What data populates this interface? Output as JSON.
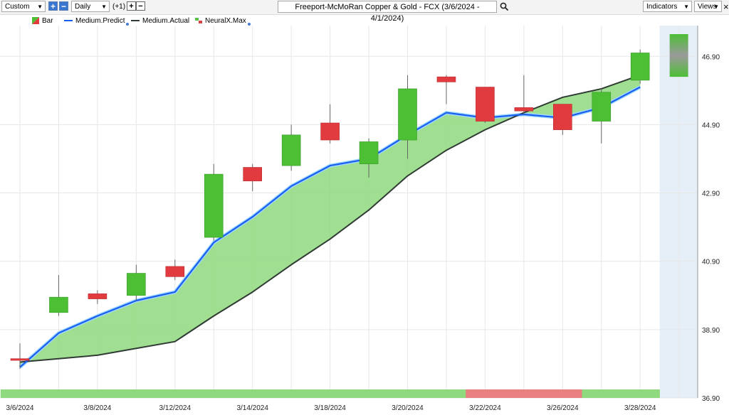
{
  "toolbar": {
    "range_select": "Custom",
    "interval_select": "Daily",
    "step_label": "(+1)",
    "title": "Freeport-McMoRan Copper & Gold - FCX (3/6/2024 - 4/1/2024)",
    "indicators_label": "Indicators",
    "views_label": "Views",
    "close_glyph": "×"
  },
  "legend": {
    "bar": "Bar",
    "predict": "Medium.Predict",
    "actual": "Medium.Actual",
    "neural": "NeuralX.Max"
  },
  "colors": {
    "up": "#4cbf35",
    "down": "#e13b3f",
    "predict": "#1a5ef0",
    "actual": "#2f3b33",
    "band": "#8fd97e",
    "forecast_bg": "#e6eef8",
    "neural_green": "#5cc04a",
    "neural_red": "#d4433f"
  },
  "chart_data": {
    "type": "candlestick",
    "title": "Freeport-McMoRan Copper & Gold - FCX (3/6/2024 - 4/1/2024)",
    "y_ticks": [
      "36.90",
      "38.90",
      "40.90",
      "42.90",
      "44.90",
      "46.90"
    ],
    "ylim": [
      36.9,
      47.8
    ],
    "x_tick_labels": [
      "3/6/2024",
      "3/8/2024",
      "3/12/2024",
      "3/14/2024",
      "3/18/2024",
      "3/20/2024",
      "3/22/2024",
      "3/26/2024",
      "3/28/2024"
    ],
    "x_tick_slots": [
      0,
      2,
      4,
      6,
      8,
      10,
      12,
      14,
      16
    ],
    "grid": true,
    "legend_position": "top-left",
    "candles": [
      {
        "slot": 0,
        "open": 38.05,
        "high": 38.5,
        "low": 37.75,
        "close": 38.0
      },
      {
        "slot": 1,
        "open": 39.4,
        "high": 40.5,
        "low": 39.3,
        "close": 39.85
      },
      {
        "slot": 2,
        "open": 39.95,
        "high": 40.05,
        "low": 39.65,
        "close": 39.8
      },
      {
        "slot": 3,
        "open": 39.9,
        "high": 40.8,
        "low": 39.75,
        "close": 40.55
      },
      {
        "slot": 4,
        "open": 40.75,
        "high": 40.95,
        "low": 40.35,
        "close": 40.45
      },
      {
        "slot": 5,
        "open": 41.6,
        "high": 43.75,
        "low": 41.5,
        "close": 43.45
      },
      {
        "slot": 6,
        "open": 43.65,
        "high": 43.75,
        "low": 42.95,
        "close": 43.25
      },
      {
        "slot": 7,
        "open": 43.7,
        "high": 44.9,
        "low": 43.55,
        "close": 44.6
      },
      {
        "slot": 8,
        "open": 44.95,
        "high": 45.5,
        "low": 44.35,
        "close": 44.45
      },
      {
        "slot": 9,
        "open": 43.75,
        "high": 44.5,
        "low": 43.35,
        "close": 44.4
      },
      {
        "slot": 10,
        "open": 44.45,
        "high": 46.35,
        "low": 43.9,
        "close": 45.95
      },
      {
        "slot": 11,
        "open": 46.3,
        "high": 46.35,
        "low": 45.5,
        "close": 46.15
      },
      {
        "slot": 12,
        "open": 46.0,
        "high": 46.0,
        "low": 44.95,
        "close": 45.0
      },
      {
        "slot": 13,
        "open": 45.4,
        "high": 46.35,
        "low": 45.2,
        "close": 45.3
      },
      {
        "slot": 14,
        "open": 45.5,
        "high": 45.5,
        "low": 44.6,
        "close": 44.75
      },
      {
        "slot": 15,
        "open": 45.0,
        "high": 45.95,
        "low": 44.35,
        "close": 45.85
      },
      {
        "slot": 16,
        "open": 46.2,
        "high": 47.1,
        "low": 46.1,
        "close": 47.0
      }
    ],
    "series": [
      {
        "name": "Medium.Predict",
        "values": [
          37.8,
          38.8,
          39.3,
          39.75,
          40.0,
          41.45,
          42.2,
          43.1,
          43.7,
          43.9,
          44.6,
          45.25,
          45.1,
          45.2,
          45.1,
          45.4,
          46.0
        ]
      },
      {
        "name": "Medium.Actual",
        "values": [
          37.95,
          38.05,
          38.15,
          38.35,
          38.55,
          39.3,
          40.0,
          40.8,
          41.55,
          42.4,
          43.4,
          44.15,
          44.75,
          45.25,
          45.7,
          45.95,
          46.35
        ]
      }
    ],
    "forecast": {
      "slot": 17,
      "open": 47.55,
      "high": 47.55,
      "low": 46.3,
      "close": 46.3
    },
    "signal_strip": [
      "up",
      "up",
      "up",
      "up",
      "up",
      "up",
      "up",
      "up",
      "up",
      "up",
      "up",
      "up",
      "down",
      "down",
      "down",
      "up",
      "up"
    ]
  }
}
